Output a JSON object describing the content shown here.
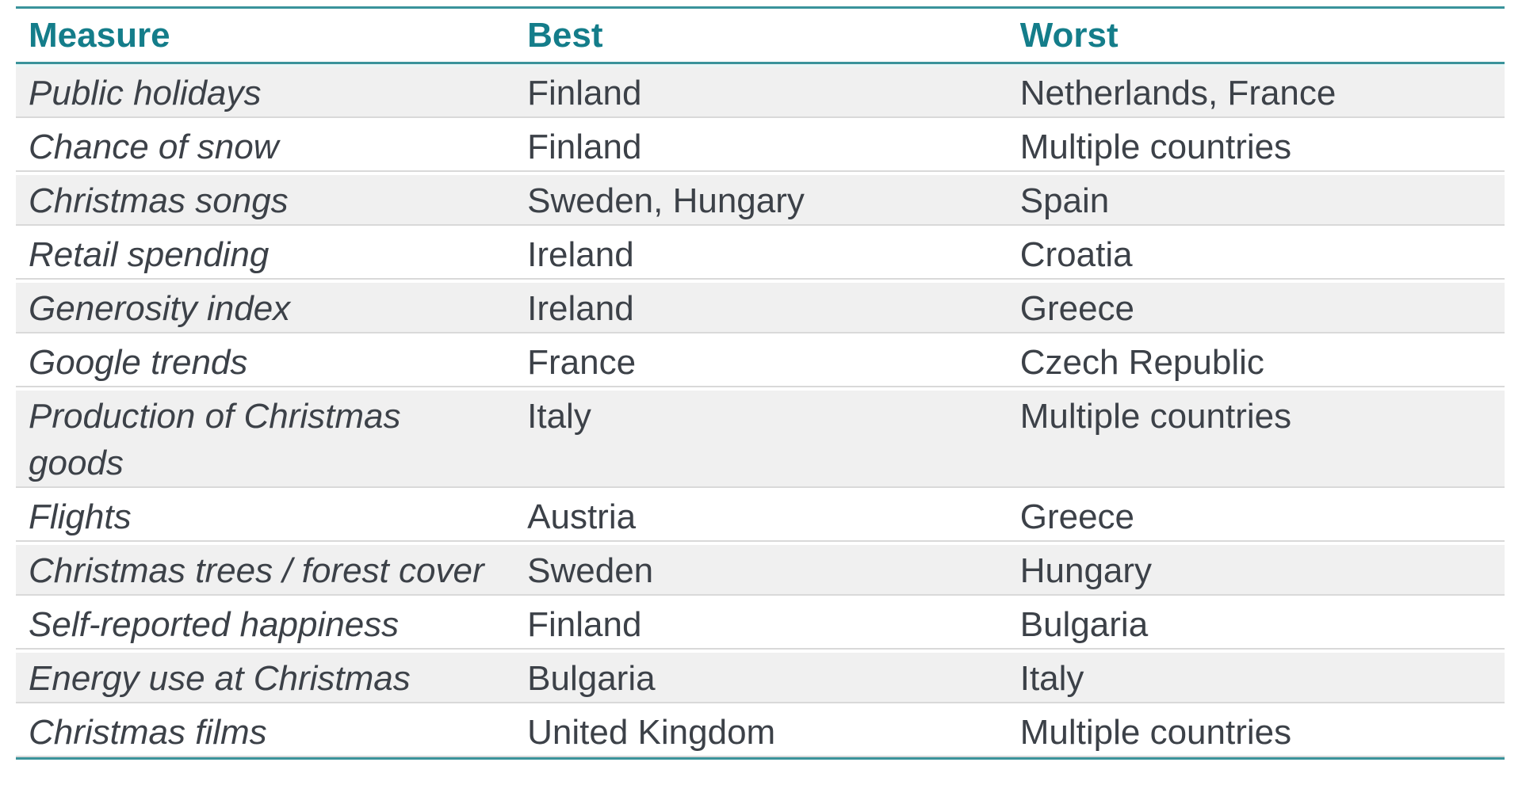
{
  "chart_data": {
    "type": "table",
    "columns": [
      {
        "id": "measure",
        "label": "Measure"
      },
      {
        "id": "best",
        "label": "Best"
      },
      {
        "id": "worst",
        "label": "Worst"
      }
    ],
    "rows": [
      {
        "measure": "Public holidays",
        "best": "Finland",
        "worst": "Netherlands, France"
      },
      {
        "measure": "Chance of snow",
        "best": "Finland",
        "worst": "Multiple countries"
      },
      {
        "measure": "Christmas songs",
        "best": "Sweden, Hungary",
        "worst": "Spain"
      },
      {
        "measure": "Retail spending",
        "best": "Ireland",
        "worst": "Croatia"
      },
      {
        "measure": "Generosity index",
        "best": "Ireland",
        "worst": "Greece"
      },
      {
        "measure": "Google trends",
        "best": "France",
        "worst": "Czech Republic"
      },
      {
        "measure": "Production of Christmas\ngoods",
        "best": "Italy",
        "worst": "Multiple countries"
      },
      {
        "measure": "Flights",
        "best": "Austria",
        "worst": "Greece"
      },
      {
        "measure": "Christmas trees / forest cover",
        "best": "Sweden",
        "worst": "Hungary"
      },
      {
        "measure": "Self-reported happiness",
        "best": "Finland",
        "worst": "Bulgaria"
      },
      {
        "measure": "Energy use at Christmas",
        "best": "Bulgaria",
        "worst": "Italy"
      },
      {
        "measure": "Christmas films",
        "best": "United Kingdom",
        "worst": "Multiple countries"
      }
    ],
    "layout": {
      "striped_rows": "odd",
      "header_position": "top",
      "grid": "horizontal-only"
    }
  },
  "colors": {
    "accent_line": "#3a939b",
    "accent_text": "#147d8a",
    "body_text": "#3c4148",
    "row_stripe": "#f0f0f0",
    "row_separator": "#d9d9d9",
    "background": "#ffffff"
  }
}
